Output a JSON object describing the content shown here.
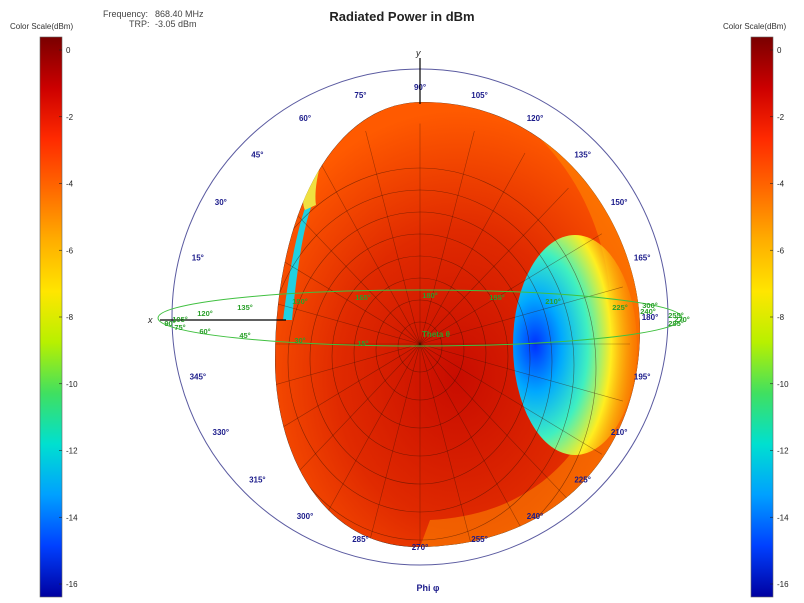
{
  "header": {
    "frequency_label": "Frequency:",
    "frequency_value": "868.40 MHz",
    "trp_label": "TRP:",
    "trp_value": "-3.05 dBm"
  },
  "chart_data": {
    "type": "heatmap",
    "title": "Radiated Power in dBm",
    "axis_y_label": "y",
    "axis_x_label": "x",
    "phi_label": "Phi φ",
    "theta_label": "Theta θ",
    "color_scale": {
      "label": "Color Scale(dBm)",
      "min": -16,
      "max": 0,
      "ticks": [
        "0",
        "-2",
        "-4",
        "-6",
        "-8",
        "-10",
        "-12",
        "-14",
        "-16"
      ],
      "colors": [
        "#7a0000",
        "#cc0000",
        "#ff2a00",
        "#ff6a00",
        "#ffae00",
        "#ffe600",
        "#b8f000",
        "#40e060",
        "#00e0d0",
        "#00a0ff",
        "#0040ff",
        "#0000a0"
      ]
    },
    "phi_ring_labels": [
      {
        "deg": 90,
        "label": "90°"
      },
      {
        "deg": 105,
        "label": "105°"
      },
      {
        "deg": 120,
        "label": "120°"
      },
      {
        "deg": 135,
        "label": "135°"
      },
      {
        "deg": 150,
        "label": "150°"
      },
      {
        "deg": 165,
        "label": "165°"
      },
      {
        "deg": 180,
        "label": "180°"
      },
      {
        "deg": 195,
        "label": "195°"
      },
      {
        "deg": 210,
        "label": "210°"
      },
      {
        "deg": 225,
        "label": "225°"
      },
      {
        "deg": 240,
        "label": "240°"
      },
      {
        "deg": 255,
        "label": "255°"
      },
      {
        "deg": 270,
        "label": "270°"
      },
      {
        "deg": 285,
        "label": "285°"
      },
      {
        "deg": 300,
        "label": "300°"
      },
      {
        "deg": 315,
        "label": "315°"
      },
      {
        "deg": 330,
        "label": "330°"
      },
      {
        "deg": 345,
        "label": "345°"
      },
      {
        "deg": 15,
        "label": "15°"
      },
      {
        "deg": 30,
        "label": "30°"
      },
      {
        "deg": 45,
        "label": "45°"
      },
      {
        "deg": 60,
        "label": "60°"
      },
      {
        "deg": 75,
        "label": "75°"
      }
    ],
    "theta_labels": [
      "0",
      "15°",
      "30°",
      "45°",
      "60°",
      "75°",
      "90°",
      "105°",
      "120°",
      "135°",
      "150°",
      "165°",
      "180°",
      "195°",
      "210°",
      "225°",
      "240°",
      "255°",
      "270°",
      "285°",
      "300°"
    ],
    "pattern_summary": {
      "peak_dBm": 0,
      "minimum_dBm": -16,
      "low_region": "around theta 90° on the right side (phi ≈ 0°)"
    }
  }
}
